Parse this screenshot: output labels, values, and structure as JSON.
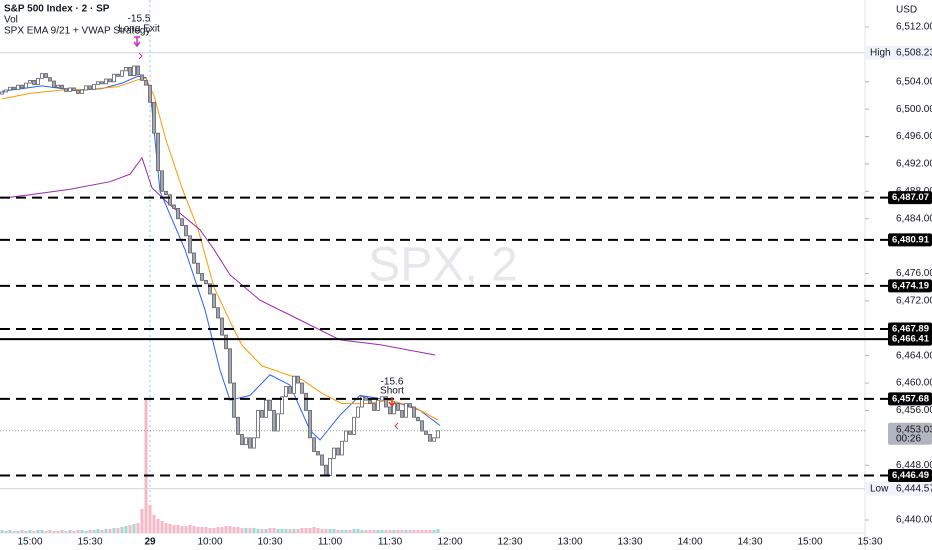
{
  "chart_data": {
    "type": "candlestick",
    "title": "S&P 500 Index · 2 · SP",
    "indicator_labels": [
      "Vol",
      "SPX EMA 9/21 + VWAP Strategy"
    ],
    "watermark": "SPX, 2",
    "currency": "USD",
    "up_color": "#ffffff",
    "down_color": "#a3a6af",
    "volume_up_color": "#9fd9d3",
    "volume_down_color": "#f6b8c6",
    "x": [
      -7,
      -6,
      -5,
      -4,
      -3,
      -2,
      -1,
      0,
      1,
      2,
      3,
      4,
      5,
      6,
      7,
      8,
      9,
      10,
      11,
      12,
      13,
      14,
      15,
      16,
      17,
      18,
      19,
      20,
      21,
      22,
      23,
      24,
      25,
      26,
      27,
      28,
      29,
      30,
      31,
      32,
      33,
      34,
      35,
      36,
      37,
      38,
      39,
      40,
      41,
      42,
      43,
      44,
      45,
      46,
      47,
      48,
      49,
      50,
      51,
      52,
      53,
      54,
      55,
      56,
      57,
      58,
      59,
      60,
      61,
      62,
      63,
      64,
      65,
      66,
      67,
      68,
      69,
      70,
      71,
      72,
      73,
      74,
      75,
      76,
      77,
      78,
      79,
      80,
      81,
      82,
      83,
      84,
      85,
      86,
      87,
      88,
      89,
      90,
      91,
      92,
      93,
      94,
      95,
      96,
      97,
      98,
      99,
      100,
      101,
      102
    ],
    "open": [
      6502.2,
      6502.5,
      6502.8,
      6503.2,
      6502.9,
      6503.5,
      6503.1,
      6503.8,
      6504.2,
      6503.6,
      6504.5,
      6505.2,
      6504.6,
      6504.1,
      6503.2,
      6503.5,
      6503.0,
      6502.6,
      6503.1,
      6502.7,
      6502.3,
      6502.8,
      6503.4,
      6502.9,
      6503.6,
      6504.0,
      6503.7,
      6504.4,
      6504.0,
      6505.1,
      6504.8,
      6505.6,
      6506.1,
      6504.9,
      6506.3,
      6505.0,
      6504.2,
      6503.5,
      6501.0,
      6496.5,
      6491.0,
      6488.0,
      6487.5,
      6486.0,
      6485.5,
      6484.0,
      6483.0,
      6481.5,
      6479.0,
      6477.5,
      6476.0,
      6475.0,
      6474.5,
      6473.0,
      6471.0,
      6469.5,
      6467.0,
      6465.0,
      6460.0,
      6455.0,
      6452.5,
      6451.0,
      6452.0,
      6450.5,
      6452.0,
      6456.0,
      6455.0,
      6457.5,
      6456.0,
      6453.0,
      6455.5,
      6458.0,
      6459.5,
      6458.5,
      6461.0,
      6460.0,
      6458.5,
      6456.0,
      6452.0,
      6450.0,
      6449.5,
      6448.0,
      6446.5,
      6449.0,
      6450.5,
      6449.5,
      6451.5,
      6453.0,
      6452.5,
      6455.0,
      6456.5,
      6458.0,
      6457.5,
      6457.0,
      6456.0,
      6457.5,
      6458.0,
      6456.5,
      6455.5,
      6457.0,
      6456.0,
      6455.0,
      6457.0,
      6456.5,
      6455.0,
      6454.5,
      6453.0,
      6452.5,
      6451.5,
      6452.0
    ],
    "high": {
      "label": "High",
      "value": 6508.23,
      "value_label": "6,508.23"
    },
    "low": {
      "label": "Low",
      "value": 6444.57,
      "value_label": "6,444.57"
    },
    "close": [
      6502.5,
      6502.8,
      6503.2,
      6502.9,
      6503.5,
      6503.1,
      6503.8,
      6504.2,
      6503.6,
      6504.5,
      6505.2,
      6504.6,
      6504.1,
      6503.2,
      6503.5,
      6503.0,
      6502.6,
      6503.1,
      6502.7,
      6502.3,
      6502.8,
      6503.4,
      6502.9,
      6503.6,
      6504.0,
      6503.7,
      6504.4,
      6504.0,
      6505.1,
      6504.8,
      6505.6,
      6506.1,
      6504.9,
      6506.3,
      6505.0,
      6504.2,
      6503.5,
      6501.0,
      6496.5,
      6491.0,
      6488.0,
      6487.5,
      6486.0,
      6485.5,
      6484.0,
      6483.0,
      6481.5,
      6479.0,
      6477.5,
      6476.0,
      6475.0,
      6474.5,
      6473.0,
      6471.0,
      6469.5,
      6467.0,
      6465.0,
      6460.0,
      6455.0,
      6452.5,
      6451.0,
      6452.0,
      6450.5,
      6452.0,
      6456.0,
      6455.0,
      6457.5,
      6456.0,
      6453.0,
      6455.5,
      6458.0,
      6459.5,
      6458.5,
      6461.0,
      6460.0,
      6458.5,
      6456.0,
      6452.0,
      6450.0,
      6449.5,
      6448.0,
      6446.5,
      6449.0,
      6450.5,
      6449.5,
      6451.5,
      6453.0,
      6452.5,
      6455.0,
      6456.5,
      6458.0,
      6457.5,
      6457.0,
      6456.0,
      6457.5,
      6458.0,
      6456.5,
      6455.5,
      6457.0,
      6456.0,
      6455.0,
      6457.0,
      6456.5,
      6455.0,
      6454.5,
      6453.0,
      6452.5,
      6451.5,
      6452.0,
      6453.03
    ],
    "volume": [
      3,
      2,
      3,
      2,
      2,
      3,
      2,
      3,
      2,
      3,
      3,
      2,
      3,
      2,
      2,
      3,
      2,
      3,
      2,
      3,
      3,
      2,
      3,
      3,
      4,
      3,
      4,
      4,
      5,
      5,
      6,
      7,
      8,
      9,
      10,
      24,
      133,
      28,
      18,
      14,
      12,
      10,
      9,
      8,
      8,
      7,
      7,
      8,
      7,
      6,
      6,
      6,
      5,
      5,
      6,
      6,
      7,
      7,
      6,
      6,
      5,
      5,
      5,
      5,
      4,
      4,
      4,
      5,
      5,
      4,
      4,
      4,
      4,
      4,
      4,
      5,
      5,
      5,
      6,
      5,
      4,
      4,
      4,
      4,
      3,
      3,
      3,
      3,
      4,
      4,
      3,
      3,
      3,
      3,
      3,
      3,
      3,
      3,
      3,
      3,
      3,
      3,
      3,
      3,
      3,
      3,
      3,
      3,
      3,
      4
    ],
    "lines": [
      {
        "color": "#2962ff",
        "x": [
          -7,
          -2,
          3,
          8,
          13,
          18,
          23,
          27,
          29,
          30,
          32.5,
          38.75,
          43.75,
          47.5,
          50,
          55,
          60,
          65,
          70,
          72.5,
          77.5,
          82.5,
          90,
          97.5,
          102.5
        ],
        "values": [
          6502.6,
          6503.0,
          6503.4,
          6503.0,
          6502.8,
          6503.0,
          6503.8,
          6504.8,
          6504.6,
          6503.0,
          6488.0,
          6479.5,
          6470.7,
          6461.9,
          6457.5,
          6458.2,
          6461.2,
          6459.7,
          6453.1,
          6451.7,
          6455.3,
          6458.2,
          6457.5,
          6456.0,
          6453.8
        ]
      },
      {
        "color": "#ff9800",
        "x": [
          -7,
          0,
          8,
          15,
          22,
          27,
          29,
          31,
          34,
          38,
          42,
          46,
          50,
          53,
          58,
          63,
          68,
          73,
          78,
          84,
          90,
          96,
          102
        ],
        "values": [
          6501.5,
          6502.3,
          6502.8,
          6502.9,
          6503.3,
          6504.3,
          6504.5,
          6502.0,
          6495.5,
          6488.5,
          6482.5,
          6474.0,
          6469.0,
          6465.5,
          6462.5,
          6461.5,
          6460.5,
          6458.5,
          6457.0,
          6457.0,
          6457.5,
          6456.5,
          6454.6
        ]
      },
      {
        "color": "#9c27b0",
        "x": [
          -7,
          0,
          10,
          20,
          25,
          28,
          30.5,
          35,
          42.5,
          46,
          50,
          57.5,
          67.5,
          77.5,
          87.5,
          101.25
        ],
        "values": [
          6487.0,
          6487.5,
          6488.3,
          6489.4,
          6490.5,
          6492.9,
          6488.5,
          6486.0,
          6482.4,
          6479.5,
          6475.8,
          6472.1,
          6469.2,
          6466.3,
          6465.6,
          6464.1
        ]
      }
    ],
    "levels": [
      {
        "value": 6487.07,
        "label": "6,487.07",
        "dashed": true
      },
      {
        "value": 6480.91,
        "label": "6,480.91",
        "dashed": true
      },
      {
        "value": 6474.19,
        "label": "6,474.19",
        "dashed": true
      },
      {
        "value": 6467.89,
        "label": "6,467.89",
        "dashed": true
      },
      {
        "value": 6466.41,
        "label": "6,466.41",
        "dashed": false
      },
      {
        "value": 6457.68,
        "label": "6,457.68",
        "dashed": true
      },
      {
        "value": 6446.49,
        "label": "6,446.49",
        "dashed": true
      }
    ],
    "last": {
      "value": 6453.03,
      "value_label": "6,453.03",
      "countdown": "00:26"
    },
    "annotations": [
      {
        "label": "-15.5",
        "text": "Long Exit"
      },
      {
        "label": "-15.6",
        "text": "Short"
      }
    ],
    "xlim": [
      -7.5,
      208
    ],
    "xticks": [
      {
        "value": 0,
        "label": "15:00"
      },
      {
        "value": 15,
        "label": "15:30"
      },
      {
        "value": 30,
        "label": "29"
      },
      {
        "value": 45,
        "label": "10:00"
      },
      {
        "value": 60,
        "label": "10:30"
      },
      {
        "value": 75,
        "label": "11:00"
      },
      {
        "value": 90,
        "label": "11:30"
      },
      {
        "value": 105,
        "label": "12:00"
      },
      {
        "value": 120,
        "label": "12:30"
      },
      {
        "value": 135,
        "label": "13:00"
      },
      {
        "value": 150,
        "label": "13:30"
      },
      {
        "value": 165,
        "label": "14:00"
      },
      {
        "value": 180,
        "label": "14:30"
      },
      {
        "value": 195,
        "label": "15:00"
      },
      {
        "value": 210,
        "label": "15:30"
      }
    ],
    "ylim": [
      6438.1,
      6515.94
    ],
    "yticks": [
      {
        "value": 6512,
        "label": "6,512.00"
      },
      {
        "value": 6504,
        "label": "6,504.00"
      },
      {
        "value": 6500,
        "label": "6,500.00"
      },
      {
        "value": 6496,
        "label": "6,496.00"
      },
      {
        "value": 6492,
        "label": "6,492.00"
      },
      {
        "value": 6488,
        "label": "6,488.00"
      },
      {
        "value": 6484,
        "label": "6,484.00"
      },
      {
        "value": 6476,
        "label": "6,476.00"
      },
      {
        "value": 6472,
        "label": "6,472.00"
      },
      {
        "value": 6464,
        "label": "6,464.00"
      },
      {
        "value": 6460,
        "label": "6,460.00"
      },
      {
        "value": 6456,
        "label": "6,456.00"
      },
      {
        "value": 6448,
        "label": "6,448.00"
      },
      {
        "value": 6440,
        "label": "6,440.00"
      }
    ]
  }
}
